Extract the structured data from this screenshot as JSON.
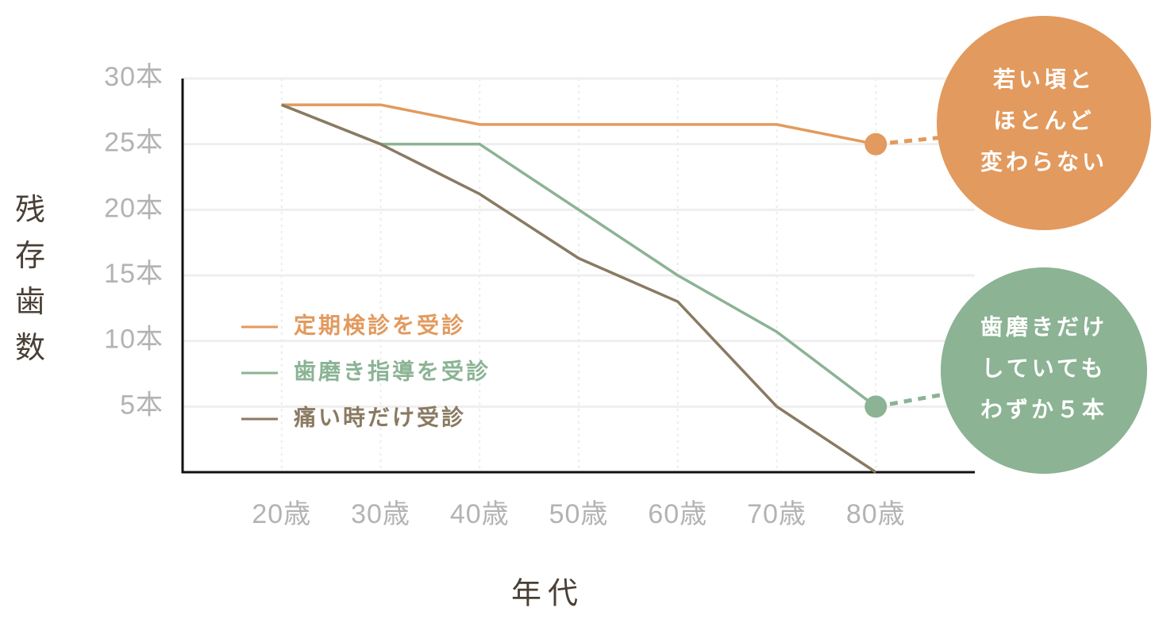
{
  "chart_data": {
    "type": "line",
    "y_label": "残存歯数",
    "x_label": "年代",
    "categories": [
      "20歳",
      "30歳",
      "40歳",
      "50歳",
      "60歳",
      "70歳",
      "80歳"
    ],
    "series": [
      {
        "name": "定期検診を受診",
        "color": "#e29a5e",
        "values": [
          28,
          28,
          26.5,
          26.5,
          26.5,
          26.5,
          25
        ]
      },
      {
        "name": "歯磨き指導を受診",
        "color": "#8bb394",
        "values": [
          28,
          25,
          25,
          20,
          15,
          10.7,
          5
        ]
      },
      {
        "name": "痛い時だけ受診",
        "color": "#8a7a62",
        "values": [
          28,
          25,
          21.2,
          16.3,
          13,
          5,
          0
        ]
      }
    ],
    "ylim": [
      0,
      30
    ],
    "yticks": [
      {
        "value": 5,
        "label": "5本"
      },
      {
        "value": 10,
        "label": "10本"
      },
      {
        "value": 15,
        "label": "15本"
      },
      {
        "value": 20,
        "label": "20本"
      },
      {
        "value": 25,
        "label": "25本"
      },
      {
        "value": 30,
        "label": "30本"
      }
    ],
    "grid": true,
    "annotations": [
      {
        "lines": [
          "若い頃と",
          "ほとんど",
          "変わらない"
        ],
        "color": "#e29a5e"
      },
      {
        "lines": [
          "歯磨きだけ",
          "していても",
          "わずか５本"
        ],
        "color": "#8bb394"
      }
    ]
  }
}
